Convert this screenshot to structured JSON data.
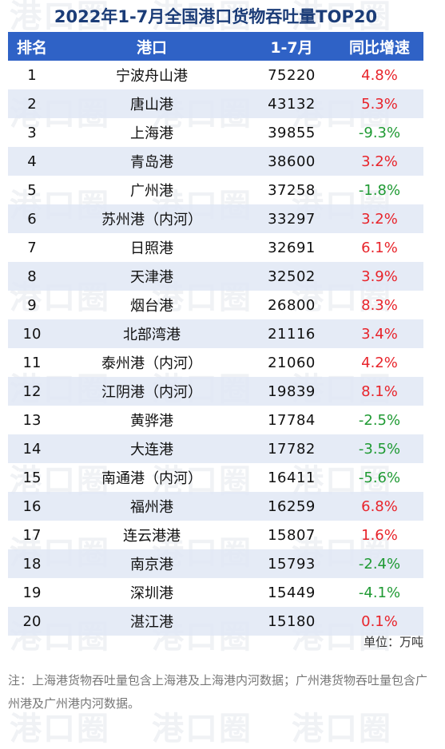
{
  "title": "2022年1-7月全国港口货物吞吐量TOP20",
  "watermark": "港口圈",
  "colors": {
    "title": "#1b3c77",
    "header_bg": "#2f62c6",
    "stripe_bg": "#e1e8f4",
    "increase": "#e8242b",
    "decrease": "#1f9a33"
  },
  "table": {
    "columns": [
      "排名",
      "港口",
      "1-7月",
      "同比增速"
    ],
    "rows": [
      {
        "rank": "1",
        "port": "宁波舟山港",
        "value": "75220",
        "growth": "4.8%"
      },
      {
        "rank": "2",
        "port": "唐山港",
        "value": "43132",
        "growth": "5.3%"
      },
      {
        "rank": "3",
        "port": "上海港",
        "value": "39855",
        "growth": "-9.3%"
      },
      {
        "rank": "4",
        "port": "青岛港",
        "value": "38600",
        "growth": "3.2%"
      },
      {
        "rank": "5",
        "port": "广州港",
        "value": "37258",
        "growth": "-1.8%"
      },
      {
        "rank": "6",
        "port": "苏州港（内河）",
        "value": "33297",
        "growth": "3.2%"
      },
      {
        "rank": "7",
        "port": "日照港",
        "value": "32691",
        "growth": "6.1%"
      },
      {
        "rank": "8",
        "port": "天津港",
        "value": "32502",
        "growth": "3.9%"
      },
      {
        "rank": "9",
        "port": "烟台港",
        "value": "26800",
        "growth": "8.3%"
      },
      {
        "rank": "10",
        "port": "北部湾港",
        "value": "21116",
        "growth": "3.4%"
      },
      {
        "rank": "11",
        "port": "泰州港（内河）",
        "value": "21060",
        "growth": "4.2%"
      },
      {
        "rank": "12",
        "port": "江阴港（内河）",
        "value": "19839",
        "growth": "8.1%"
      },
      {
        "rank": "13",
        "port": "黄骅港",
        "value": "17784",
        "growth": "-2.5%"
      },
      {
        "rank": "14",
        "port": "大连港",
        "value": "17782",
        "growth": "-3.5%"
      },
      {
        "rank": "15",
        "port": "南通港（内河）",
        "value": "16411",
        "growth": "-5.6%"
      },
      {
        "rank": "16",
        "port": "福州港",
        "value": "16259",
        "growth": "6.8%"
      },
      {
        "rank": "17",
        "port": "连云港港",
        "value": "15807",
        "growth": "1.6%"
      },
      {
        "rank": "18",
        "port": "南京港",
        "value": "15793",
        "growth": "-2.4%"
      },
      {
        "rank": "19",
        "port": "深圳港",
        "value": "15449",
        "growth": "-4.1%"
      },
      {
        "rank": "20",
        "port": "湛江港",
        "value": "15180",
        "growth": "0.1%"
      }
    ]
  },
  "unit_note": "单位：万吨",
  "footnote": "注：上海港货物吞吐量包含上海港及上海港内河数据；广州港货物吞吐量包含广州港及广州港内河数据。",
  "chart_data": {
    "type": "table",
    "title": "2022年1-7月全国港口货物吞吐量TOP20",
    "columns": [
      "排名",
      "港口",
      "1-7月",
      "同比增速"
    ],
    "unit": "单位：万吨",
    "rows": [
      [
        1,
        "宁波舟山港",
        75220,
        "4.8%"
      ],
      [
        2,
        "唐山港",
        43132,
        "5.3%"
      ],
      [
        3,
        "上海港",
        39855,
        "-9.3%"
      ],
      [
        4,
        "青岛港",
        38600,
        "3.2%"
      ],
      [
        5,
        "广州港",
        37258,
        "-1.8%"
      ],
      [
        6,
        "苏州港（内河）",
        33297,
        "3.2%"
      ],
      [
        7,
        "日照港",
        32691,
        "6.1%"
      ],
      [
        8,
        "天津港",
        32502,
        "3.9%"
      ],
      [
        9,
        "烟台港",
        26800,
        "8.3%"
      ],
      [
        10,
        "北部湾港",
        21116,
        "3.4%"
      ],
      [
        11,
        "泰州港（内河）",
        21060,
        "4.2%"
      ],
      [
        12,
        "江阴港（内河）",
        19839,
        "8.1%"
      ],
      [
        13,
        "黄骅港",
        17784,
        "-2.5%"
      ],
      [
        14,
        "大连港",
        17782,
        "-3.5%"
      ],
      [
        15,
        "南通港（内河）",
        16411,
        "-5.6%"
      ],
      [
        16,
        "福州港",
        16259,
        "6.8%"
      ],
      [
        17,
        "连云港港",
        15807,
        "1.6%"
      ],
      [
        18,
        "南京港",
        15793,
        "-2.4%"
      ],
      [
        19,
        "深圳港",
        15449,
        "-4.1%"
      ],
      [
        20,
        "湛江港",
        15180,
        "0.1%"
      ]
    ]
  }
}
